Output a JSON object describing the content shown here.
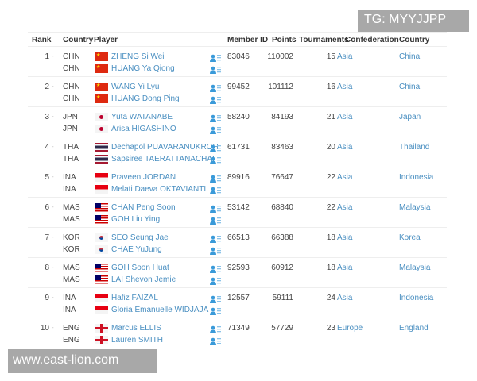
{
  "watermark_top": "TG: MYYJJPP",
  "watermark_bottom": "www.east-lion.com",
  "headers": {
    "rank": "Rank",
    "country": "Country",
    "player": "Player",
    "member_id": "Member ID",
    "points": "Points",
    "tournaments": "Tournaments",
    "confederation": "Confederation",
    "country_name": "Country"
  },
  "rows": [
    {
      "rank": "1",
      "trend": "-",
      "players": [
        {
          "code": "CHN",
          "name": "ZHENG Si Wei"
        },
        {
          "code": "CHN",
          "name": "HUANG Ya Qiong"
        }
      ],
      "member_id": "83046",
      "points": "110002",
      "tournaments": "15",
      "confederation": "Asia",
      "country": "China"
    },
    {
      "rank": "2",
      "trend": "-",
      "players": [
        {
          "code": "CHN",
          "name": "WANG Yi Lyu"
        },
        {
          "code": "CHN",
          "name": "HUANG Dong Ping"
        }
      ],
      "member_id": "99452",
      "points": "101112",
      "tournaments": "16",
      "confederation": "Asia",
      "country": "China"
    },
    {
      "rank": "3",
      "trend": "-",
      "players": [
        {
          "code": "JPN",
          "name": "Yuta WATANABE"
        },
        {
          "code": "JPN",
          "name": "Arisa HIGASHINO"
        }
      ],
      "member_id": "58240",
      "points": "84193",
      "tournaments": "21",
      "confederation": "Asia",
      "country": "Japan"
    },
    {
      "rank": "4",
      "trend": "-",
      "players": [
        {
          "code": "THA",
          "name": "Dechapol PUAVARANUKROH"
        },
        {
          "code": "THA",
          "name": "Sapsiree TAERATTANACHAI"
        }
      ],
      "member_id": "61731",
      "points": "83463",
      "tournaments": "20",
      "confederation": "Asia",
      "country": "Thailand"
    },
    {
      "rank": "5",
      "trend": "-",
      "players": [
        {
          "code": "INA",
          "name": "Praveen JORDAN"
        },
        {
          "code": "INA",
          "name": "Melati Daeva OKTAVIANTI"
        }
      ],
      "member_id": "89916",
      "points": "76647",
      "tournaments": "22",
      "confederation": "Asia",
      "country": "Indonesia"
    },
    {
      "rank": "6",
      "trend": "-",
      "players": [
        {
          "code": "MAS",
          "name": "CHAN Peng Soon"
        },
        {
          "code": "MAS",
          "name": "GOH Liu Ying"
        }
      ],
      "member_id": "53142",
      "points": "68840",
      "tournaments": "22",
      "confederation": "Asia",
      "country": "Malaysia"
    },
    {
      "rank": "7",
      "trend": "-",
      "players": [
        {
          "code": "KOR",
          "name": "SEO Seung Jae"
        },
        {
          "code": "KOR",
          "name": "CHAE YuJung"
        }
      ],
      "member_id": "66513",
      "points": "66388",
      "tournaments": "18",
      "confederation": "Asia",
      "country": "Korea"
    },
    {
      "rank": "8",
      "trend": "-",
      "players": [
        {
          "code": "MAS",
          "name": "GOH Soon Huat"
        },
        {
          "code": "MAS",
          "name": "LAI Shevon Jemie"
        }
      ],
      "member_id": "92593",
      "points": "60912",
      "tournaments": "18",
      "confederation": "Asia",
      "country": "Malaysia"
    },
    {
      "rank": "9",
      "trend": "-",
      "players": [
        {
          "code": "INA",
          "name": "Hafiz FAIZAL"
        },
        {
          "code": "INA",
          "name": "Gloria Emanuelle WIDJAJA"
        }
      ],
      "member_id": "12557",
      "points": "59111",
      "tournaments": "24",
      "confederation": "Asia",
      "country": "Indonesia"
    },
    {
      "rank": "10",
      "trend": "-",
      "players": [
        {
          "code": "ENG",
          "name": "Marcus ELLIS"
        },
        {
          "code": "ENG",
          "name": "Lauren SMITH"
        }
      ],
      "member_id": "71349",
      "points": "57729",
      "tournaments": "23",
      "confederation": "Europe",
      "country": "England"
    }
  ],
  "colors": {
    "link": "#4a8fc1",
    "icon": "#3a9ad9"
  }
}
